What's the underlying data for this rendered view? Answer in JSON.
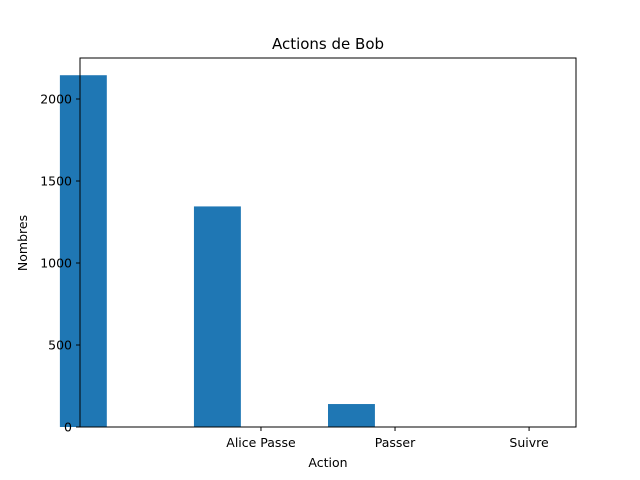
{
  "chart_data": {
    "type": "bar",
    "title": "Actions de Bob",
    "xlabel": "Action",
    "ylabel": "Nombres",
    "categories": [
      "",
      "Alice Passe",
      "Passer",
      "Suivre"
    ],
    "values": [
      2145,
      1345,
      140,
      0
    ],
    "ylim": [
      0,
      2250
    ],
    "yticks": [
      0,
      500,
      1000,
      1500,
      2000
    ],
    "bar_color": "#1f77b4",
    "grid": false,
    "legend": false
  }
}
